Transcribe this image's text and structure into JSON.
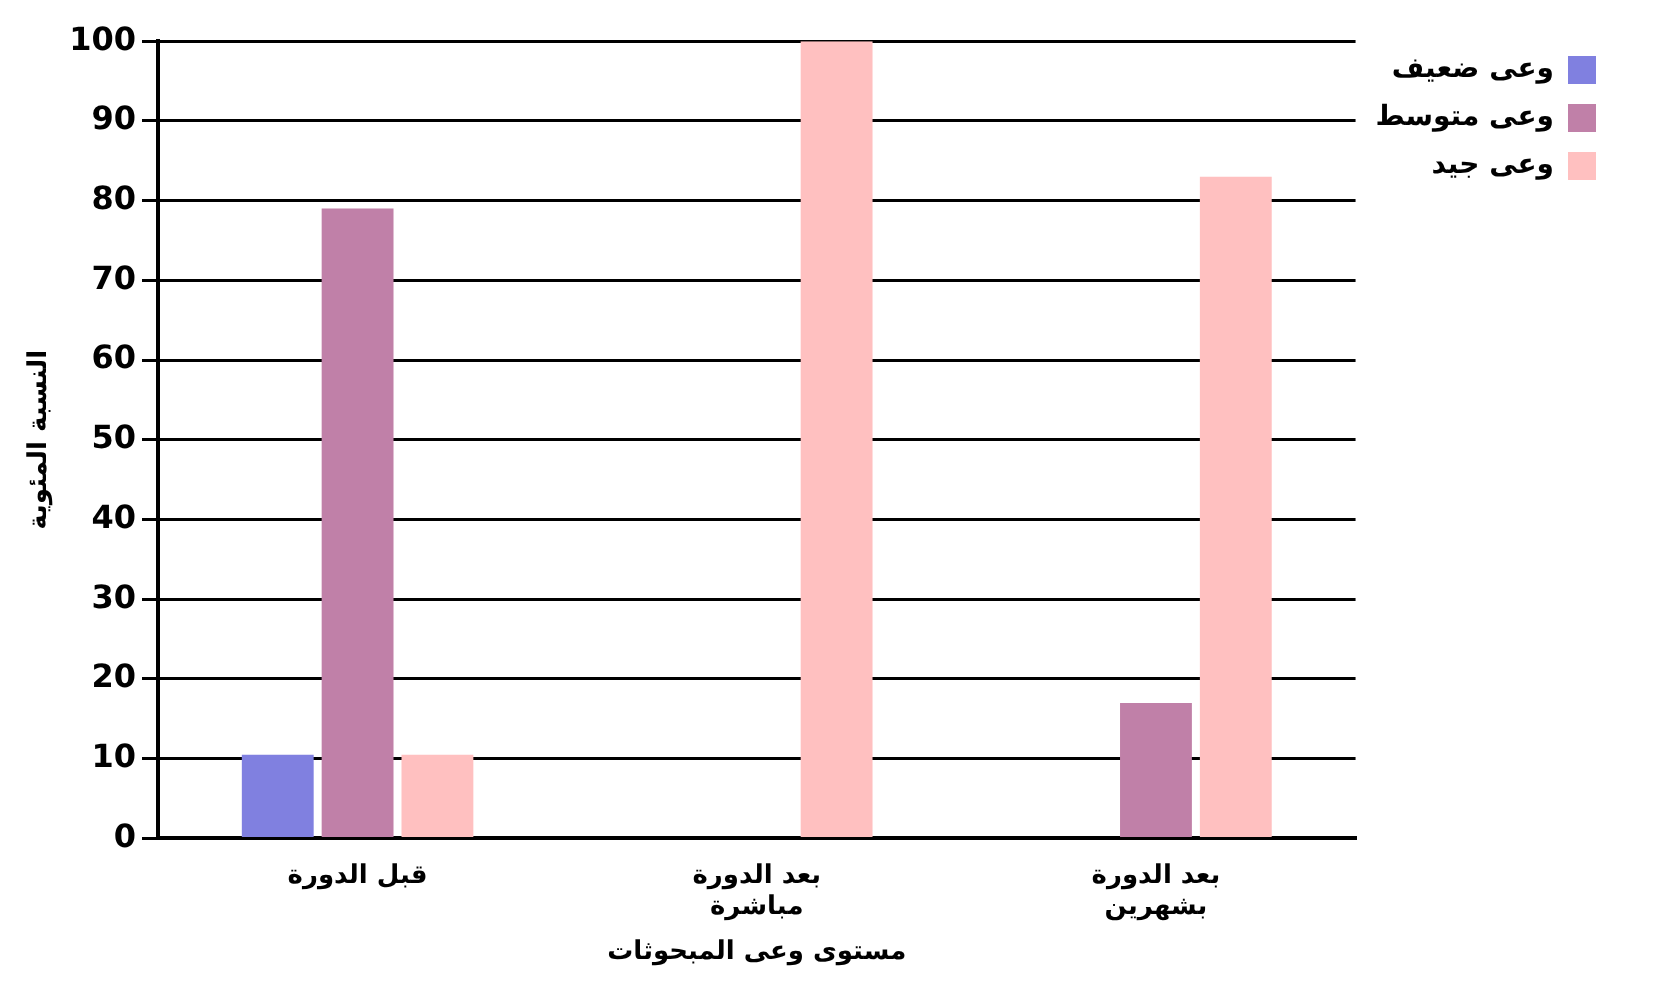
{
  "chart_data": {
    "type": "bar",
    "xlabel": "مستوى وعى المبحوثات",
    "ylabel": "النسبة المئوية",
    "categories": [
      "قبل الدورة",
      "بعد الدورة\nمباشرة",
      "بعد الدورة\nبشهرين"
    ],
    "series": [
      {
        "name": "وعى ضعيف",
        "color": "#8080e0",
        "values": [
          10.5,
          0,
          0
        ]
      },
      {
        "name": "وعى متوسط",
        "color": "#c080a8",
        "values": [
          79,
          0,
          17
        ]
      },
      {
        "name": "وعى جيد",
        "color": "#ffc0c0",
        "values": [
          10.5,
          100,
          83
        ]
      }
    ],
    "ylim": [
      0,
      100
    ],
    "yticks": [
      0,
      10,
      20,
      30,
      40,
      50,
      60,
      70,
      80,
      90,
      100
    ],
    "grid": "y",
    "legend": "top right"
  }
}
